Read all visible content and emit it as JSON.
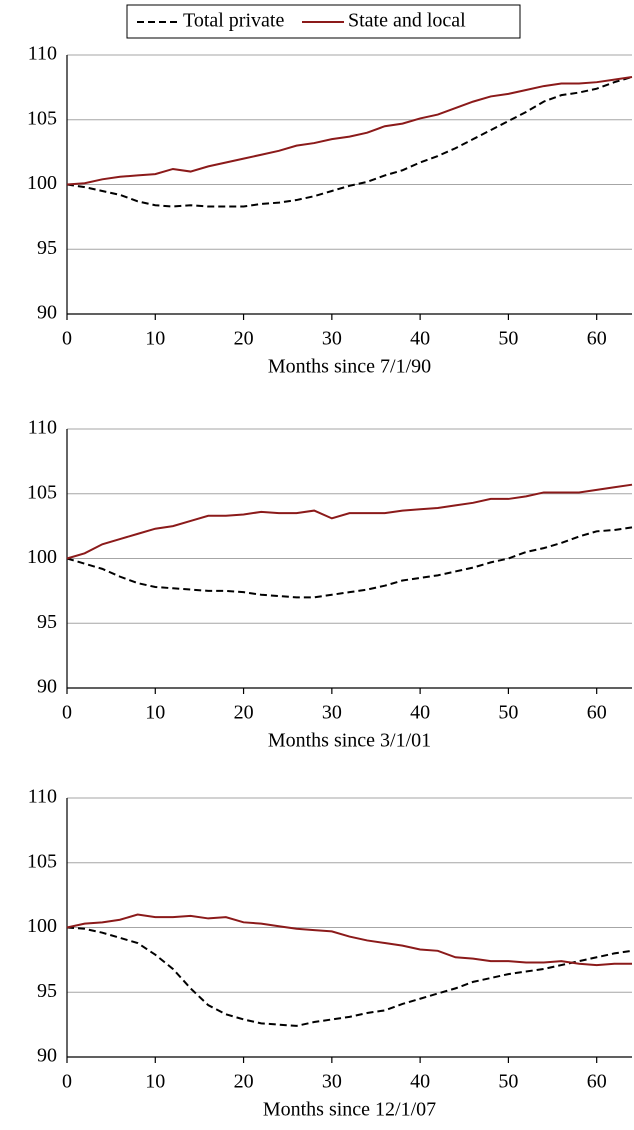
{
  "chart_data": [
    {
      "type": "line",
      "xlabel": "Months since 7/1/90",
      "x": [
        0,
        2,
        4,
        6,
        8,
        10,
        12,
        14,
        16,
        18,
        20,
        22,
        24,
        26,
        28,
        30,
        32,
        34,
        36,
        38,
        40,
        42,
        44,
        46,
        48,
        50,
        52,
        54,
        56,
        58,
        60,
        62,
        64
      ],
      "series": [
        {
          "name": "Total private",
          "color": "#000000",
          "dashed": true,
          "values": [
            100,
            99.8,
            99.5,
            99.2,
            98.7,
            98.4,
            98.3,
            98.4,
            98.3,
            98.3,
            98.3,
            98.5,
            98.6,
            98.8,
            99.1,
            99.5,
            99.9,
            100.2,
            100.7,
            101.1,
            101.7,
            102.2,
            102.8,
            103.5,
            104.2,
            104.9,
            105.6,
            106.4,
            106.9,
            107.1,
            107.4,
            107.9,
            108.3
          ]
        },
        {
          "name": "State and local",
          "color": "#8b1a1a",
          "dashed": false,
          "values": [
            100,
            100.1,
            100.4,
            100.6,
            100.7,
            100.8,
            101.2,
            101.0,
            101.4,
            101.7,
            102.0,
            102.3,
            102.6,
            103.0,
            103.2,
            103.5,
            103.7,
            104.0,
            104.5,
            104.7,
            105.1,
            105.4,
            105.9,
            106.4,
            106.8,
            107.0,
            107.3,
            107.6,
            107.8,
            107.8,
            107.9,
            108.1,
            108.3
          ]
        }
      ],
      "xlim": [
        0,
        64
      ],
      "ylim": [
        90,
        110
      ],
      "xticks": [
        0,
        10,
        20,
        30,
        40,
        50,
        60
      ],
      "yticks": [
        90,
        95,
        100,
        105,
        110
      ],
      "grid": true
    },
    {
      "type": "line",
      "xlabel": "Months since 3/1/01",
      "x": [
        0,
        2,
        4,
        6,
        8,
        10,
        12,
        14,
        16,
        18,
        20,
        22,
        24,
        26,
        28,
        30,
        32,
        34,
        36,
        38,
        40,
        42,
        44,
        46,
        48,
        50,
        52,
        54,
        56,
        58,
        60,
        62,
        64
      ],
      "series": [
        {
          "name": "Total private",
          "color": "#000000",
          "dashed": true,
          "values": [
            100,
            99.6,
            99.2,
            98.6,
            98.1,
            97.8,
            97.7,
            97.6,
            97.5,
            97.5,
            97.4,
            97.2,
            97.1,
            97.0,
            97.0,
            97.2,
            97.4,
            97.6,
            97.9,
            98.3,
            98.5,
            98.7,
            99.0,
            99.3,
            99.7,
            100.0,
            100.5,
            100.8,
            101.2,
            101.7,
            102.1,
            102.2,
            102.4
          ]
        },
        {
          "name": "State and local",
          "color": "#8b1a1a",
          "dashed": false,
          "values": [
            100,
            100.4,
            101.1,
            101.5,
            101.9,
            102.3,
            102.5,
            102.9,
            103.3,
            103.3,
            103.4,
            103.6,
            103.5,
            103.5,
            103.7,
            103.1,
            103.5,
            103.5,
            103.5,
            103.7,
            103.8,
            103.9,
            104.1,
            104.3,
            104.6,
            104.6,
            104.8,
            105.1,
            105.1,
            105.1,
            105.3,
            105.5,
            105.7
          ]
        }
      ],
      "xlim": [
        0,
        64
      ],
      "ylim": [
        90,
        110
      ],
      "xticks": [
        0,
        10,
        20,
        30,
        40,
        50,
        60
      ],
      "yticks": [
        90,
        95,
        100,
        105,
        110
      ],
      "grid": true
    },
    {
      "type": "line",
      "xlabel": "Months since 12/1/07",
      "x": [
        0,
        2,
        4,
        6,
        8,
        10,
        12,
        14,
        16,
        18,
        20,
        22,
        24,
        26,
        28,
        30,
        32,
        34,
        36,
        38,
        40,
        42,
        44,
        46,
        48,
        50,
        52,
        54,
        56,
        58,
        60,
        62,
        64
      ],
      "series": [
        {
          "name": "Total private",
          "color": "#000000",
          "dashed": true,
          "values": [
            100,
            99.9,
            99.6,
            99.2,
            98.8,
            97.9,
            96.8,
            95.3,
            94.0,
            93.3,
            92.9,
            92.6,
            92.5,
            92.4,
            92.7,
            92.9,
            93.1,
            93.4,
            93.6,
            94.1,
            94.5,
            94.9,
            95.3,
            95.8,
            96.1,
            96.4,
            96.6,
            96.8,
            97.1,
            97.4,
            97.7,
            98.0,
            98.2
          ]
        },
        {
          "name": "State and local",
          "color": "#8b1a1a",
          "dashed": false,
          "values": [
            100,
            100.3,
            100.4,
            100.6,
            101.0,
            100.8,
            100.8,
            100.9,
            100.7,
            100.8,
            100.4,
            100.3,
            100.1,
            99.9,
            99.8,
            99.7,
            99.3,
            99.0,
            98.8,
            98.6,
            98.3,
            98.2,
            97.7,
            97.6,
            97.4,
            97.4,
            97.3,
            97.3,
            97.4,
            97.2,
            97.1,
            97.2,
            97.2
          ]
        }
      ],
      "xlim": [
        0,
        64
      ],
      "ylim": [
        90,
        110
      ],
      "xticks": [
        0,
        10,
        20,
        30,
        40,
        50,
        60
      ],
      "yticks": [
        90,
        95,
        100,
        105,
        110
      ],
      "grid": true
    }
  ]
}
